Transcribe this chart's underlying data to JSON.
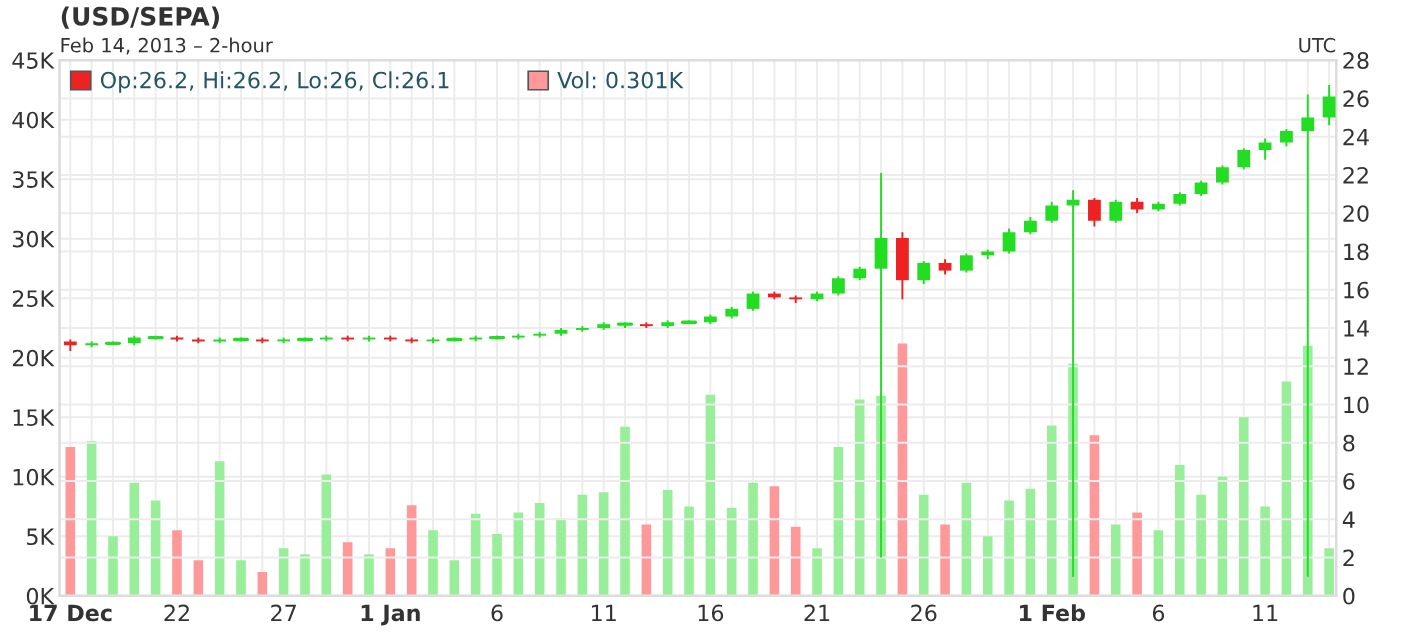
{
  "chart_data": {
    "type": "candlestick",
    "title": "(USD/SEPA)",
    "subtitle": "Feb 14, 2013 – 2-hour",
    "annotations": [
      "UTC"
    ],
    "x": [
      "2012-12-17",
      "2012-12-18",
      "2012-12-19",
      "2012-12-20",
      "2012-12-21",
      "2012-12-22",
      "2012-12-23",
      "2012-12-24",
      "2012-12-25",
      "2012-12-26",
      "2012-12-27",
      "2012-12-28",
      "2012-12-29",
      "2012-12-30",
      "2012-12-31",
      "2013-01-01",
      "2013-01-02",
      "2013-01-03",
      "2013-01-04",
      "2013-01-05",
      "2013-01-06",
      "2013-01-07",
      "2013-01-08",
      "2013-01-09",
      "2013-01-10",
      "2013-01-11",
      "2013-01-12",
      "2013-01-13",
      "2013-01-14",
      "2013-01-15",
      "2013-01-16",
      "2013-01-17",
      "2013-01-18",
      "2013-01-19",
      "2013-01-20",
      "2013-01-21",
      "2013-01-22",
      "2013-01-23",
      "2013-01-24",
      "2013-01-25",
      "2013-01-26",
      "2013-01-27",
      "2013-01-28",
      "2013-01-29",
      "2013-01-30",
      "2013-01-31",
      "2013-02-01",
      "2013-02-02",
      "2013-02-03",
      "2013-02-04",
      "2013-02-05",
      "2013-02-06",
      "2013-02-07",
      "2013-02-08",
      "2013-02-09",
      "2013-02-10",
      "2013-02-11",
      "2013-02-12",
      "2013-02-13",
      "2013-02-14"
    ],
    "series": [
      {
        "type": "bar",
        "axis": "y",
        "name": "Vol: 0.301K",
        "color": "#ff9999",
        "values": [
          12500,
          13000,
          5000,
          9500,
          8000,
          5500,
          3000,
          11300,
          3000,
          2000,
          4000,
          3500,
          10200,
          4500,
          3500,
          4000,
          7600,
          5500,
          3000,
          6900,
          5200,
          7000,
          7800,
          6500,
          8500,
          8700,
          14200,
          6000,
          8900,
          7500,
          16900,
          7400,
          9500,
          9200,
          5800,
          4000,
          12500,
          16500,
          16800,
          21200,
          8500,
          6000,
          9500,
          5000,
          8000,
          9000,
          14300,
          19500,
          13500,
          6000,
          7000,
          5500,
          11000,
          8500,
          10000,
          15000,
          7500,
          18000,
          21000,
          4000
        ],
        "colors": [
          "#ff9999",
          "#99ee99",
          "#99ee99",
          "#99ee99",
          "#99ee99",
          "#ff9999",
          "#ff9999",
          "#99ee99",
          "#99ee99",
          "#ff9999",
          "#99ee99",
          "#99ee99",
          "#99ee99",
          "#ff9999",
          "#99ee99",
          "#ff9999",
          "#ff9999",
          "#99ee99",
          "#99ee99",
          "#99ee99",
          "#99ee99",
          "#99ee99",
          "#99ee99",
          "#99ee99",
          "#99ee99",
          "#99ee99",
          "#99ee99",
          "#ff9999",
          "#99ee99",
          "#99ee99",
          "#99ee99",
          "#99ee99",
          "#99ee99",
          "#ff9999",
          "#ff9999",
          "#99ee99",
          "#99ee99",
          "#99ee99",
          "#99ee99",
          "#ff9999",
          "#99ee99",
          "#ff9999",
          "#99ee99",
          "#99ee99",
          "#99ee99",
          "#99ee99",
          "#99ee99",
          "#99ee99",
          "#ff9999",
          "#99ee99",
          "#ff9999",
          "#99ee99",
          "#99ee99",
          "#99ee99",
          "#99ee99",
          "#99ee99",
          "#99ee99",
          "#99ee99",
          "#99ee99",
          "#99ee99"
        ]
      },
      {
        "type": "candlestick",
        "axis": "y2",
        "name": "Op:26.2, Hi:26.2, Lo:26, Cl:26.1",
        "color": "#ee2222",
        "ohlc": [
          [
            13.3,
            13.4,
            12.8,
            13.1
          ],
          [
            13.1,
            13.3,
            13.0,
            13.2
          ],
          [
            13.2,
            13.3,
            13.1,
            13.2
          ],
          [
            13.2,
            13.6,
            13.1,
            13.5
          ],
          [
            13.5,
            13.6,
            13.4,
            13.5
          ],
          [
            13.5,
            13.6,
            13.3,
            13.4
          ],
          [
            13.4,
            13.5,
            13.2,
            13.3
          ],
          [
            13.3,
            13.5,
            13.2,
            13.4
          ],
          [
            13.4,
            13.5,
            13.3,
            13.4
          ],
          [
            13.4,
            13.5,
            13.2,
            13.3
          ],
          [
            13.3,
            13.5,
            13.2,
            13.4
          ],
          [
            13.4,
            13.5,
            13.3,
            13.4
          ],
          [
            13.4,
            13.6,
            13.3,
            13.5
          ],
          [
            13.5,
            13.6,
            13.3,
            13.4
          ],
          [
            13.4,
            13.6,
            13.3,
            13.5
          ],
          [
            13.5,
            13.6,
            13.3,
            13.4
          ],
          [
            13.4,
            13.5,
            13.2,
            13.3
          ],
          [
            13.3,
            13.5,
            13.2,
            13.4
          ],
          [
            13.4,
            13.5,
            13.3,
            13.4
          ],
          [
            13.4,
            13.6,
            13.3,
            13.5
          ],
          [
            13.5,
            13.6,
            13.4,
            13.5
          ],
          [
            13.5,
            13.7,
            13.4,
            13.6
          ],
          [
            13.6,
            13.8,
            13.5,
            13.7
          ],
          [
            13.7,
            14.0,
            13.6,
            13.9
          ],
          [
            13.9,
            14.1,
            13.8,
            14.0
          ],
          [
            14.0,
            14.3,
            13.9,
            14.2
          ],
          [
            14.2,
            14.3,
            14.0,
            14.2
          ],
          [
            14.2,
            14.3,
            14.0,
            14.1
          ],
          [
            14.1,
            14.4,
            14.0,
            14.3
          ],
          [
            14.3,
            14.4,
            14.2,
            14.3
          ],
          [
            14.3,
            14.7,
            14.2,
            14.6
          ],
          [
            14.6,
            15.1,
            14.5,
            15.0
          ],
          [
            15.0,
            15.9,
            14.9,
            15.8
          ],
          [
            15.8,
            15.9,
            15.5,
            15.6
          ],
          [
            15.6,
            15.7,
            15.3,
            15.5
          ],
          [
            15.5,
            15.9,
            15.4,
            15.8
          ],
          [
            15.8,
            16.7,
            15.7,
            16.6
          ],
          [
            16.6,
            17.2,
            16.5,
            17.1
          ],
          [
            17.1,
            22.1,
            2.0,
            18.7
          ],
          [
            18.7,
            19.0,
            15.5,
            16.5
          ],
          [
            16.5,
            17.5,
            16.3,
            17.4
          ],
          [
            17.4,
            17.6,
            16.8,
            17.0
          ],
          [
            17.0,
            17.9,
            16.9,
            17.8
          ],
          [
            17.8,
            18.1,
            17.6,
            18.0
          ],
          [
            18.0,
            19.2,
            17.9,
            19.0
          ],
          [
            19.0,
            19.8,
            18.9,
            19.6
          ],
          [
            19.6,
            20.6,
            19.5,
            20.4
          ],
          [
            20.4,
            21.2,
            1.0,
            20.7
          ],
          [
            20.7,
            20.8,
            19.3,
            19.6
          ],
          [
            19.6,
            20.7,
            19.5,
            20.6
          ],
          [
            20.6,
            20.8,
            20.0,
            20.2
          ],
          [
            20.2,
            20.6,
            20.1,
            20.5
          ],
          [
            20.5,
            21.1,
            20.4,
            21.0
          ],
          [
            21.0,
            21.7,
            20.9,
            21.6
          ],
          [
            21.6,
            22.5,
            21.5,
            22.4
          ],
          [
            22.4,
            23.4,
            22.3,
            23.3
          ],
          [
            23.3,
            23.9,
            22.8,
            23.7
          ],
          [
            23.7,
            24.4,
            23.5,
            24.3
          ],
          [
            24.3,
            26.2,
            1.0,
            25.0
          ],
          [
            25.0,
            26.7,
            24.6,
            26.1
          ]
        ],
        "colors": [
          "#ee2222",
          "#22dd22",
          "#22dd22",
          "#22dd22",
          "#22dd22",
          "#ee2222",
          "#ee2222",
          "#22dd22",
          "#22dd22",
          "#ee2222",
          "#22dd22",
          "#22dd22",
          "#22dd22",
          "#ee2222",
          "#22dd22",
          "#ee2222",
          "#ee2222",
          "#22dd22",
          "#22dd22",
          "#22dd22",
          "#22dd22",
          "#22dd22",
          "#22dd22",
          "#22dd22",
          "#22dd22",
          "#22dd22",
          "#22dd22",
          "#ee2222",
          "#22dd22",
          "#22dd22",
          "#22dd22",
          "#22dd22",
          "#22dd22",
          "#ee2222",
          "#ee2222",
          "#22dd22",
          "#22dd22",
          "#22dd22",
          "#22dd22",
          "#ee2222",
          "#22dd22",
          "#ee2222",
          "#22dd22",
          "#22dd22",
          "#22dd22",
          "#22dd22",
          "#22dd22",
          "#22dd22",
          "#ee2222",
          "#22dd22",
          "#ee2222",
          "#22dd22",
          "#22dd22",
          "#22dd22",
          "#22dd22",
          "#22dd22",
          "#22dd22",
          "#22dd22",
          "#22dd22",
          "#22dd22"
        ]
      }
    ],
    "xlim": [
      "2012-12-16T12:00",
      "2013-02-14T08:00"
    ],
    "xticks": [
      {
        "value": "2012-12-17",
        "label": "17 Dec"
      },
      {
        "value": "2012-12-18",
        "label": null
      },
      {
        "value": "2012-12-19",
        "label": null
      },
      {
        "value": "2012-12-20",
        "label": null
      },
      {
        "value": "2012-12-21",
        "label": null
      },
      {
        "value": "2012-12-22",
        "label": "22"
      },
      {
        "value": "2012-12-23",
        "label": null
      },
      {
        "value": "2012-12-24",
        "label": null
      },
      {
        "value": "2012-12-25",
        "label": null
      },
      {
        "value": "2012-12-26",
        "label": null
      },
      {
        "value": "2012-12-27",
        "label": "27"
      },
      {
        "value": "2012-12-28",
        "label": null
      },
      {
        "value": "2012-12-29",
        "label": null
      },
      {
        "value": "2012-12-30",
        "label": null
      },
      {
        "value": "2012-12-31",
        "label": null
      },
      {
        "value": "2013-01-01",
        "label": "1 Jan"
      },
      {
        "value": "2013-01-02",
        "label": null
      },
      {
        "value": "2013-01-03",
        "label": null
      },
      {
        "value": "2013-01-04",
        "label": null
      },
      {
        "value": "2013-01-05",
        "label": null
      },
      {
        "value": "2013-01-06",
        "label": "6"
      },
      {
        "value": "2013-01-07",
        "label": null
      },
      {
        "value": "2013-01-08",
        "label": null
      },
      {
        "value": "2013-01-09",
        "label": null
      },
      {
        "value": "2013-01-10",
        "label": null
      },
      {
        "value": "2013-01-11",
        "label": "11"
      },
      {
        "value": "2013-01-12",
        "label": null
      },
      {
        "value": "2013-01-13",
        "label": null
      },
      {
        "value": "2013-01-14",
        "label": null
      },
      {
        "value": "2013-01-15",
        "label": null
      },
      {
        "value": "2013-01-16",
        "label": "16"
      },
      {
        "value": "2013-01-17",
        "label": null
      },
      {
        "value": "2013-01-18",
        "label": null
      },
      {
        "value": "2013-01-19",
        "label": null
      },
      {
        "value": "2013-01-20",
        "label": null
      },
      {
        "value": "2013-01-21",
        "label": "21"
      },
      {
        "value": "2013-01-22",
        "label": null
      },
      {
        "value": "2013-01-23",
        "label": null
      },
      {
        "value": "2013-01-24",
        "label": null
      },
      {
        "value": "2013-01-25",
        "label": null
      },
      {
        "value": "2013-01-26",
        "label": "26"
      },
      {
        "value": "2013-01-27",
        "label": null
      },
      {
        "value": "2013-01-28",
        "label": null
      },
      {
        "value": "2013-01-29",
        "label": null
      },
      {
        "value": "2013-01-30",
        "label": null
      },
      {
        "value": "2013-01-31",
        "label": null
      },
      {
        "value": "2013-02-01",
        "label": "1 Feb"
      },
      {
        "value": "2013-02-02",
        "label": null
      },
      {
        "value": "2013-02-03",
        "label": null
      },
      {
        "value": "2013-02-04",
        "label": null
      },
      {
        "value": "2013-02-05",
        "label": null
      },
      {
        "value": "2013-02-06",
        "label": "6"
      },
      {
        "value": "2013-02-07",
        "label": null
      },
      {
        "value": "2013-02-08",
        "label": null
      },
      {
        "value": "2013-02-09",
        "label": null
      },
      {
        "value": "2013-02-10",
        "label": null
      },
      {
        "value": "2013-02-11",
        "label": "11"
      },
      {
        "value": "2013-02-12",
        "label": null
      },
      {
        "value": "2013-02-13",
        "label": null
      },
      {
        "value": "2013-02-14",
        "label": null
      }
    ],
    "ylim": [
      0,
      45000
    ],
    "yticks": [
      {
        "value": 0,
        "label": "0K"
      },
      {
        "value": 5000,
        "label": "5K"
      },
      {
        "value": 10000,
        "label": "10K"
      },
      {
        "value": 15000,
        "label": "15K"
      },
      {
        "value": 20000,
        "label": "20K"
      },
      {
        "value": 25000,
        "label": "25K"
      },
      {
        "value": 30000,
        "label": "30K"
      },
      {
        "value": 35000,
        "label": "35K"
      },
      {
        "value": 40000,
        "label": "40K"
      },
      {
        "value": 45000,
        "label": "45K"
      }
    ],
    "y2lim": [
      0,
      28
    ],
    "y2ticks": [
      0,
      2,
      4,
      6,
      8,
      10,
      12,
      14,
      16,
      18,
      20,
      22,
      24,
      26,
      28
    ],
    "grid": true,
    "legend": "top left"
  }
}
